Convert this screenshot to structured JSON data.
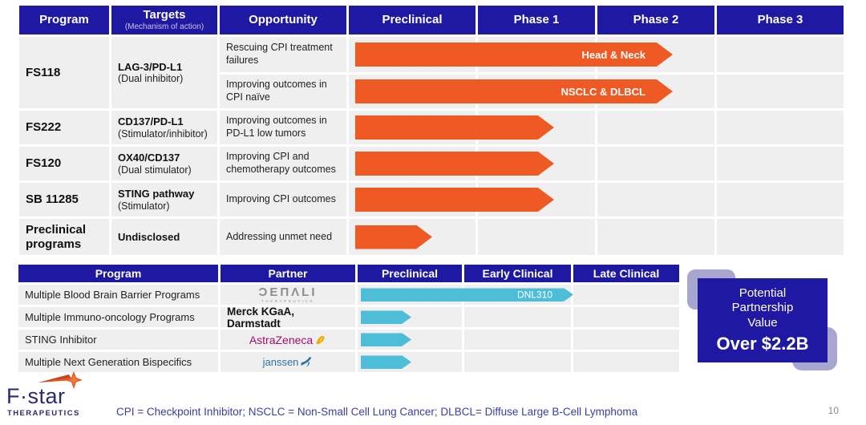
{
  "colors": {
    "header_navy": "#1E18A2",
    "bar_orange": "#EF5A24",
    "bar_cyan": "#4EBDD8",
    "row_gray": "#EFEFEF",
    "shadow_purple": "#A8A5CF",
    "footnote_navy": "#3B3E9E"
  },
  "top_table": {
    "headers": {
      "program": "Program",
      "targets": "Targets",
      "targets_sub": "(Mechanism of action)",
      "opportunity": "Opportunity",
      "preclinical": "Preclinical",
      "phase1": "Phase 1",
      "phase2": "Phase 2",
      "phase3": "Phase 3"
    },
    "rows": [
      {
        "program": "FS118",
        "target": "LAG-3/PD-L1",
        "target_sub": "(Dual inhibitor)",
        "opp1": "Rescuing CPI treatment failures",
        "opp1_label": "Head & Neck",
        "opp2": "Improving outcomes in CPI naïve",
        "opp2_label": "NSCLC & DLBCL"
      },
      {
        "program": "FS222",
        "target": "CD137/PD-L1",
        "target_sub": "(Stimulator/inhibitor)",
        "opp": "Improving outcomes in PD-L1 low tumors"
      },
      {
        "program": "FS120",
        "target": "OX40/CD137",
        "target_sub": "(Dual stimulator)",
        "opp": "Improving CPI and chemotherapy outcomes"
      },
      {
        "program": "SB 11285",
        "target": "STING pathway",
        "target_sub": "(Stimulator)",
        "opp": "Improving CPI outcomes"
      },
      {
        "program": "Preclinical programs",
        "target": "Undisclosed",
        "target_sub": "",
        "opp": "Addressing unmet need"
      }
    ]
  },
  "bottom_table": {
    "headers": {
      "program": "Program",
      "partner": "Partner",
      "preclinical": "Preclinical",
      "early": "Early Clinical",
      "late": "Late Clinical"
    },
    "rows": [
      {
        "program": "Multiple Blood Brain Barrier Programs",
        "partner": "Denali Therapeutics",
        "partner_display": "ƆEΠΛLI",
        "partner_sub": "THERAPEUTICS",
        "arrow_label": "DNL310"
      },
      {
        "program": "Multiple Immuno-oncology Programs",
        "partner": "Merck KGaA, Darmstadt"
      },
      {
        "program": "STING Inhibitor",
        "partner": "AstraZeneca"
      },
      {
        "program": "Multiple Next Generation Bispecifics",
        "partner": "janssen"
      }
    ]
  },
  "value_box": {
    "line1": "Potential",
    "line2": "Partnership",
    "line3": "Value",
    "value": "Over $2.2B"
  },
  "footer": {
    "logo_name": "F·star",
    "logo_sub": "THERAPEUTICS",
    "footnote": "CPI = Checkpoint Inhibitor; NSCLC = Non-Small Cell Lung Cancer; DLBCL= Diffuse Large B-Cell Lymphoma",
    "page_number": "10"
  },
  "chart_data": [
    {
      "type": "bar",
      "title": "Proprietary pipeline progress (Gantt-style)",
      "stage_axis": [
        "Preclinical",
        "Phase 1",
        "Phase 2",
        "Phase 3"
      ],
      "bar_color": "#EF5A24",
      "legend_position": "none",
      "series": [
        {
          "name": "FS118 – Rescuing CPI treatment failures",
          "label": "Head & Neck",
          "extent_stages": 2.65
        },
        {
          "name": "FS118 – Improving outcomes in CPI naïve",
          "label": "NSCLC & DLBCL",
          "extent_stages": 2.65
        },
        {
          "name": "FS222 – Improving outcomes in PD-L1 low tumors",
          "label": "",
          "extent_stages": 1.65
        },
        {
          "name": "FS120 – Improving CPI and chemotherapy outcomes",
          "label": "",
          "extent_stages": 1.65
        },
        {
          "name": "SB 11285 – Improving CPI outcomes",
          "label": "",
          "extent_stages": 1.65
        },
        {
          "name": "Preclinical programs – Addressing unmet need",
          "label": "",
          "extent_stages": 0.65
        }
      ]
    },
    {
      "type": "bar",
      "title": "Partnered pipeline progress (Gantt-style)",
      "stage_axis": [
        "Preclinical",
        "Early Clinical",
        "Late Clinical"
      ],
      "bar_color": "#4EBDD8",
      "legend_position": "none",
      "series": [
        {
          "name": "Multiple Blood Brain Barrier Programs (Denali)",
          "label": "DNL310",
          "extent_stages": 2.0
        },
        {
          "name": "Multiple Immuno-oncology Programs (Merck KGaA, Darmstadt)",
          "label": "",
          "extent_stages": 0.5
        },
        {
          "name": "STING Inhibitor (AstraZeneca)",
          "label": "",
          "extent_stages": 0.5
        },
        {
          "name": "Multiple Next Generation Bispecifics (janssen)",
          "label": "",
          "extent_stages": 0.5
        }
      ]
    }
  ]
}
